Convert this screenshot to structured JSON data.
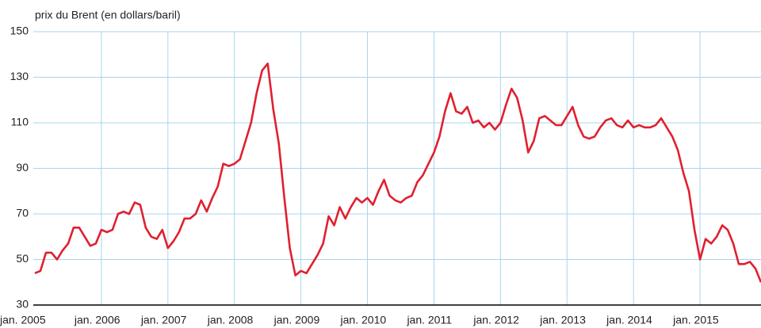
{
  "chart_data": {
    "type": "line",
    "ylabel": "prix du Brent (en dollars/baril)",
    "categories": [
      "jan. 2005",
      null,
      null,
      null,
      null,
      null,
      null,
      null,
      null,
      null,
      null,
      null,
      "jan. 2006",
      null,
      null,
      null,
      null,
      null,
      null,
      null,
      null,
      null,
      null,
      null,
      "jan. 2007",
      null,
      null,
      null,
      null,
      null,
      null,
      null,
      null,
      null,
      null,
      null,
      "jan. 2008",
      null,
      null,
      null,
      null,
      null,
      null,
      null,
      null,
      null,
      null,
      null,
      "jan. 2009",
      null,
      null,
      null,
      null,
      null,
      null,
      null,
      null,
      null,
      null,
      null,
      "jan. 2010",
      null,
      null,
      null,
      null,
      null,
      null,
      null,
      null,
      null,
      null,
      null,
      "jan. 2011",
      null,
      null,
      null,
      null,
      null,
      null,
      null,
      null,
      null,
      null,
      null,
      "jan. 2012",
      null,
      null,
      null,
      null,
      null,
      null,
      null,
      null,
      null,
      null,
      null,
      "jan. 2013",
      null,
      null,
      null,
      null,
      null,
      null,
      null,
      null,
      null,
      null,
      null,
      "jan. 2014",
      null,
      null,
      null,
      null,
      null,
      null,
      null,
      null,
      null,
      null,
      null,
      "jan. 2015",
      null,
      null,
      null,
      null,
      null,
      null,
      null,
      null,
      null,
      null,
      null
    ],
    "series": [
      {
        "color": "#e0202f",
        "values": [
          44,
          45,
          53,
          53,
          50,
          54,
          57,
          64,
          64,
          60,
          56,
          57,
          63,
          62,
          63,
          70,
          71,
          70,
          75,
          74,
          64,
          60,
          59,
          63,
          55,
          58,
          62,
          68,
          68,
          70,
          76,
          71,
          77,
          82,
          92,
          91,
          92,
          94,
          102,
          110,
          123,
          133,
          136,
          116,
          101,
          77,
          55,
          43,
          45,
          44,
          48,
          52,
          57,
          69,
          65,
          73,
          68,
          73,
          77,
          75,
          77,
          74,
          80,
          85,
          78,
          76,
          75,
          77,
          78,
          84,
          87,
          92,
          97,
          104,
          115,
          123,
          115,
          114,
          117,
          110,
          111,
          108,
          110,
          107,
          110,
          118,
          125,
          121,
          111,
          97,
          102,
          112,
          113,
          111,
          109,
          109,
          113,
          117,
          109,
          104,
          103,
          104,
          108,
          111,
          112,
          109,
          108,
          111,
          108,
          109,
          108,
          108,
          109,
          112,
          108,
          104,
          98,
          88,
          80,
          63,
          50,
          59,
          57,
          60,
          65,
          63,
          57,
          48,
          48,
          49,
          46,
          40
        ]
      }
    ],
    "ylim": [
      30,
      150
    ],
    "yticks": [
      30,
      50,
      70,
      90,
      110,
      130,
      150
    ],
    "grid": true
  }
}
